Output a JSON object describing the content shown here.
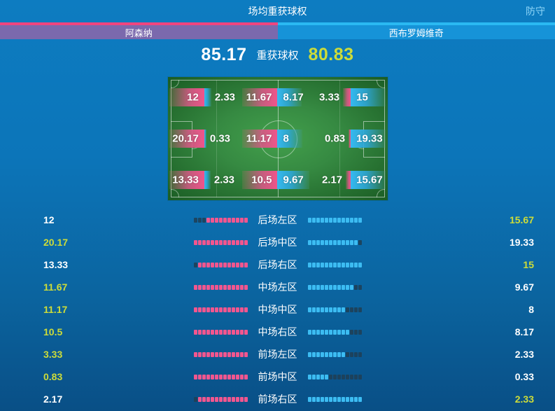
{
  "header": {
    "title": "场均重获球权",
    "tab": "防守"
  },
  "teams": {
    "home": {
      "name": "阿森纳",
      "accent": "#f0457f",
      "bar_color": "#7b69ad"
    },
    "away": {
      "name": "西布罗姆维奇",
      "accent": "#2ab9f2",
      "bar_color": "#1693d8"
    }
  },
  "summary": {
    "home_value": "85.17",
    "label": "重获球权",
    "away_value": "80.83",
    "home_color": "#ffffff",
    "away_color": "#cddc39"
  },
  "colors": {
    "home_fill": "#f1568f",
    "away_fill": "#3cbcf2",
    "dot_unfilled": "rgba(32,62,84,0.85)",
    "highlight": "#cddc39",
    "normal": "#ffffff"
  },
  "chart_data": {
    "type": "bar",
    "title": "场均重获球权",
    "series": [
      {
        "name": "阿森纳",
        "total": 85.17,
        "values": [
          12,
          20.17,
          13.33,
          11.67,
          11.17,
          10.5,
          3.33,
          0.83,
          2.17
        ]
      },
      {
        "name": "西布罗姆维奇",
        "total": 80.83,
        "values": [
          15.67,
          19.33,
          15,
          9.67,
          8,
          8.17,
          2.33,
          0.33,
          2.33
        ]
      }
    ],
    "categories": [
      "后场左区",
      "后场中区",
      "后场右区",
      "中场左区",
      "中场中区",
      "中场右区",
      "前场左区",
      "前场中区",
      "前场右区"
    ],
    "legend_position": "top",
    "segments_per_bar": 13
  },
  "pitch": {
    "cells": [
      {
        "home": 12,
        "away": 2.33
      },
      {
        "home": 11.67,
        "away": 8.17
      },
      {
        "home": 3.33,
        "away": 15
      },
      {
        "home": 20.17,
        "away": 0.33
      },
      {
        "home": 11.17,
        "away": 8
      },
      {
        "home": 0.83,
        "away": 19.33
      },
      {
        "home": 13.33,
        "away": 2.33
      },
      {
        "home": 10.5,
        "away": 9.67
      },
      {
        "home": 2.17,
        "away": 15.67
      }
    ]
  },
  "rows": [
    {
      "label": "后场左区",
      "home": 12,
      "away": 15.67
    },
    {
      "label": "后场中区",
      "home": 20.17,
      "away": 19.33
    },
    {
      "label": "后场右区",
      "home": 13.33,
      "away": 15
    },
    {
      "label": "中场左区",
      "home": 11.67,
      "away": 9.67
    },
    {
      "label": "中场中区",
      "home": 11.17,
      "away": 8
    },
    {
      "label": "中场右区",
      "home": 10.5,
      "away": 8.17
    },
    {
      "label": "前场左区",
      "home": 3.33,
      "away": 2.33
    },
    {
      "label": "前场中区",
      "home": 0.83,
      "away": 0.33
    },
    {
      "label": "前场右区",
      "home": 2.17,
      "away": 2.33
    }
  ]
}
